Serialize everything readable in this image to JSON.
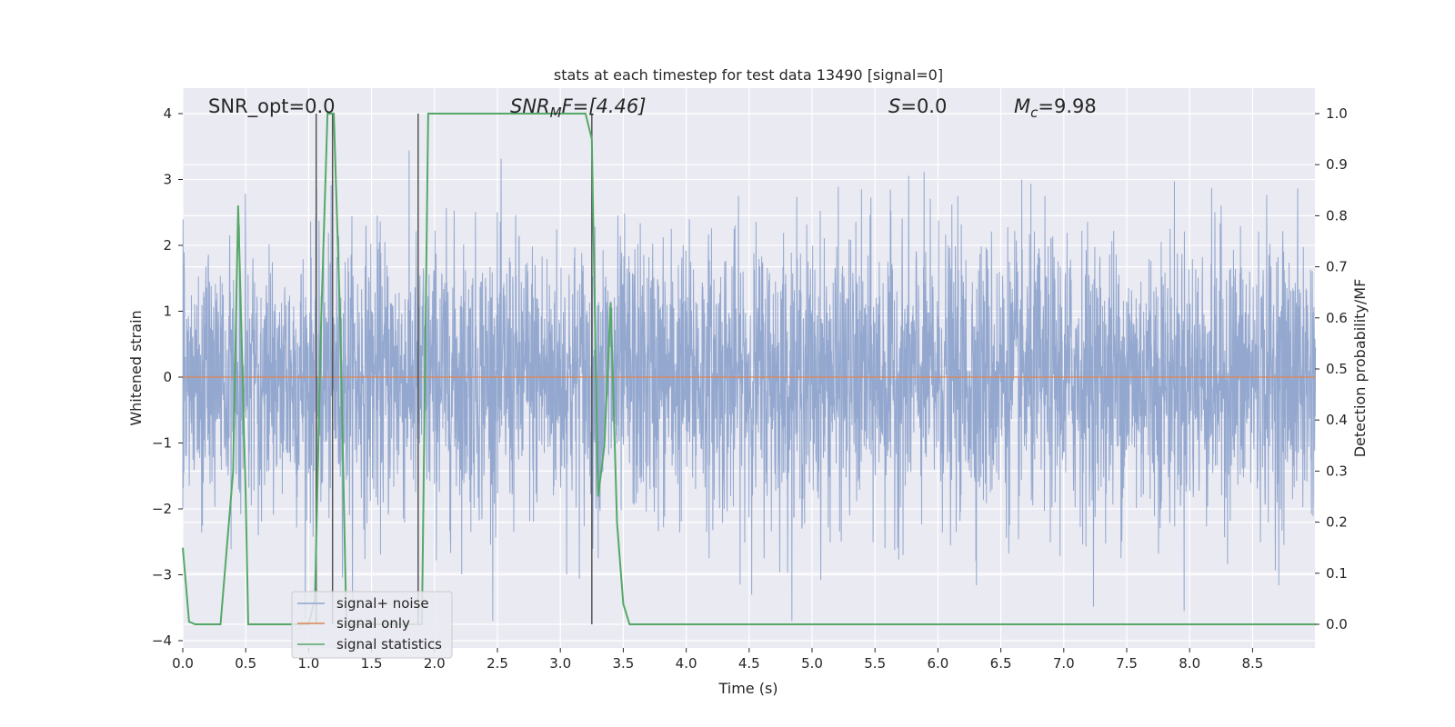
{
  "chart_data": {
    "type": "line",
    "title": "stats at each timestep for test data 13490 [signal=0]",
    "xlabel": "Time (s)",
    "ylabel": "Whitened strain",
    "y2label": "Detection probability/MF",
    "xlim": [
      0,
      9.0
    ],
    "ylim": [
      -4.2,
      4.2
    ],
    "y2lim": [
      -0.046,
      1.046
    ],
    "xticks": [
      "0.0",
      "0.5",
      "1.0",
      "1.5",
      "2.0",
      "2.5",
      "3.0",
      "3.5",
      "4.0",
      "4.5",
      "5.0",
      "5.5",
      "6.0",
      "6.5",
      "7.0",
      "7.5",
      "8.0",
      "8.5"
    ],
    "yticks": [
      "4",
      "3",
      "2",
      "1",
      "0",
      "−1",
      "−2",
      "−3",
      "−4"
    ],
    "y2ticks": [
      "1.0",
      "0.9",
      "0.8",
      "0.7",
      "0.6",
      "0.5",
      "0.4",
      "0.3",
      "0.2",
      "0.1",
      "0.0"
    ],
    "grid": true,
    "legend_position": "lower-left",
    "annotations": {
      "snr_opt": "SNR_opt=0.0",
      "snr_mf_main": "SNR",
      "snr_mf_sub": "M",
      "snr_mf_rest": "F=[4.46]",
      "s_var": "S",
      "s_rest": "=0.0",
      "mc_var": "M",
      "mc_sub": "c",
      "mc_rest": "=9.98"
    },
    "series": [
      {
        "name": "signal+ noise",
        "color": "#8fa4cc",
        "description": "whitened noise, amplitude roughly within ±3.7",
        "amplitude_range": [
          -3.7,
          3.7
        ]
      },
      {
        "name": "signal only",
        "color": "#dd8452",
        "values_constant": 0
      },
      {
        "name": "signal statistics",
        "color": "#55a868",
        "x": [
          0.0,
          0.05,
          0.1,
          0.2,
          0.3,
          0.4,
          0.44,
          0.5,
          0.52,
          0.6,
          1.0,
          1.05,
          1.1,
          1.15,
          1.2,
          1.25,
          1.3,
          1.9,
          1.95,
          2.0,
          3.15,
          3.2,
          3.25,
          3.3,
          3.35,
          3.4,
          3.45,
          3.5,
          3.55,
          3.6,
          9.0
        ],
        "values": [
          0.15,
          0.005,
          0.0,
          0.0,
          0.0,
          0.3,
          0.82,
          0.25,
          0.0,
          0.0,
          0.0,
          0.05,
          0.6,
          1.0,
          1.0,
          0.6,
          0.0,
          0.0,
          1.0,
          1.0,
          1.0,
          1.0,
          0.95,
          0.25,
          0.35,
          0.63,
          0.2,
          0.04,
          0.0,
          0.0,
          0.0
        ]
      }
    ],
    "vertical_markers": {
      "color": "#555555",
      "x": [
        1.06,
        1.19,
        1.87,
        3.25
      ],
      "y2_top": 1.0,
      "y2_bottom": 0.0
    }
  }
}
